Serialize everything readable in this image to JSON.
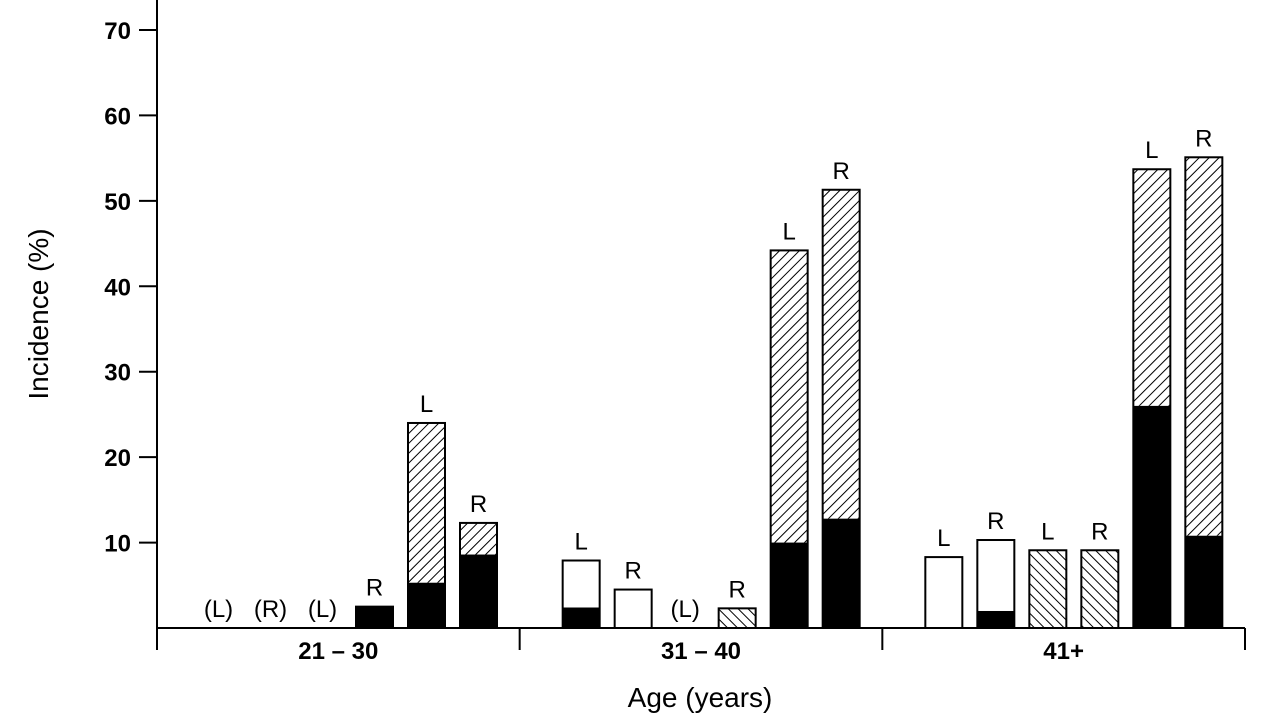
{
  "chart_data": {
    "type": "bar",
    "stacked": true,
    "title": "",
    "xlabel": "Age (years)",
    "ylabel": "Incidence (%)",
    "ylim": [
      0,
      70
    ],
    "yticks": [
      10,
      20,
      30,
      40,
      50,
      60,
      70
    ],
    "grid": false,
    "legend": "none",
    "groups": [
      {
        "label": "21 – 30",
        "bars": [
          {
            "label": "(L)",
            "solid": 0,
            "top": 0,
            "pattern": "open"
          },
          {
            "label": "(R)",
            "solid": 0,
            "top": 0,
            "pattern": "open"
          },
          {
            "label": "(L)",
            "solid": 0,
            "top": 0,
            "pattern": "backhatch"
          },
          {
            "label": "R",
            "solid": 2.5,
            "top": 0,
            "pattern": "backhatch"
          },
          {
            "label": "L",
            "solid": 5.3,
            "top": 18.7,
            "pattern": "hatch"
          },
          {
            "label": "R",
            "solid": 8.6,
            "top": 3.7,
            "pattern": "hatch"
          }
        ]
      },
      {
        "label": "31 – 40",
        "bars": [
          {
            "label": "L",
            "solid": 2.4,
            "top": 5.5,
            "pattern": "open"
          },
          {
            "label": "R",
            "solid": 0,
            "top": 4.5,
            "pattern": "open"
          },
          {
            "label": "(L)",
            "solid": 0,
            "top": 0,
            "pattern": "backhatch"
          },
          {
            "label": "R",
            "solid": 0,
            "top": 2.3,
            "pattern": "backhatch"
          },
          {
            "label": "L",
            "solid": 10,
            "top": 34.2,
            "pattern": "hatch"
          },
          {
            "label": "R",
            "solid": 12.8,
            "top": 38.5,
            "pattern": "hatch"
          }
        ]
      },
      {
        "label": "41+",
        "bars": [
          {
            "label": "L",
            "solid": 0,
            "top": 8.3,
            "pattern": "open"
          },
          {
            "label": "R",
            "solid": 2,
            "top": 8.3,
            "pattern": "open"
          },
          {
            "label": "L",
            "solid": 0,
            "top": 9.1,
            "pattern": "backhatch"
          },
          {
            "label": "R",
            "solid": 0,
            "top": 9.1,
            "pattern": "backhatch"
          },
          {
            "label": "L",
            "solid": 26,
            "top": 27.7,
            "pattern": "hatch"
          },
          {
            "label": "R",
            "solid": 10.8,
            "top": 44.3,
            "pattern": "hatch"
          }
        ]
      }
    ]
  }
}
